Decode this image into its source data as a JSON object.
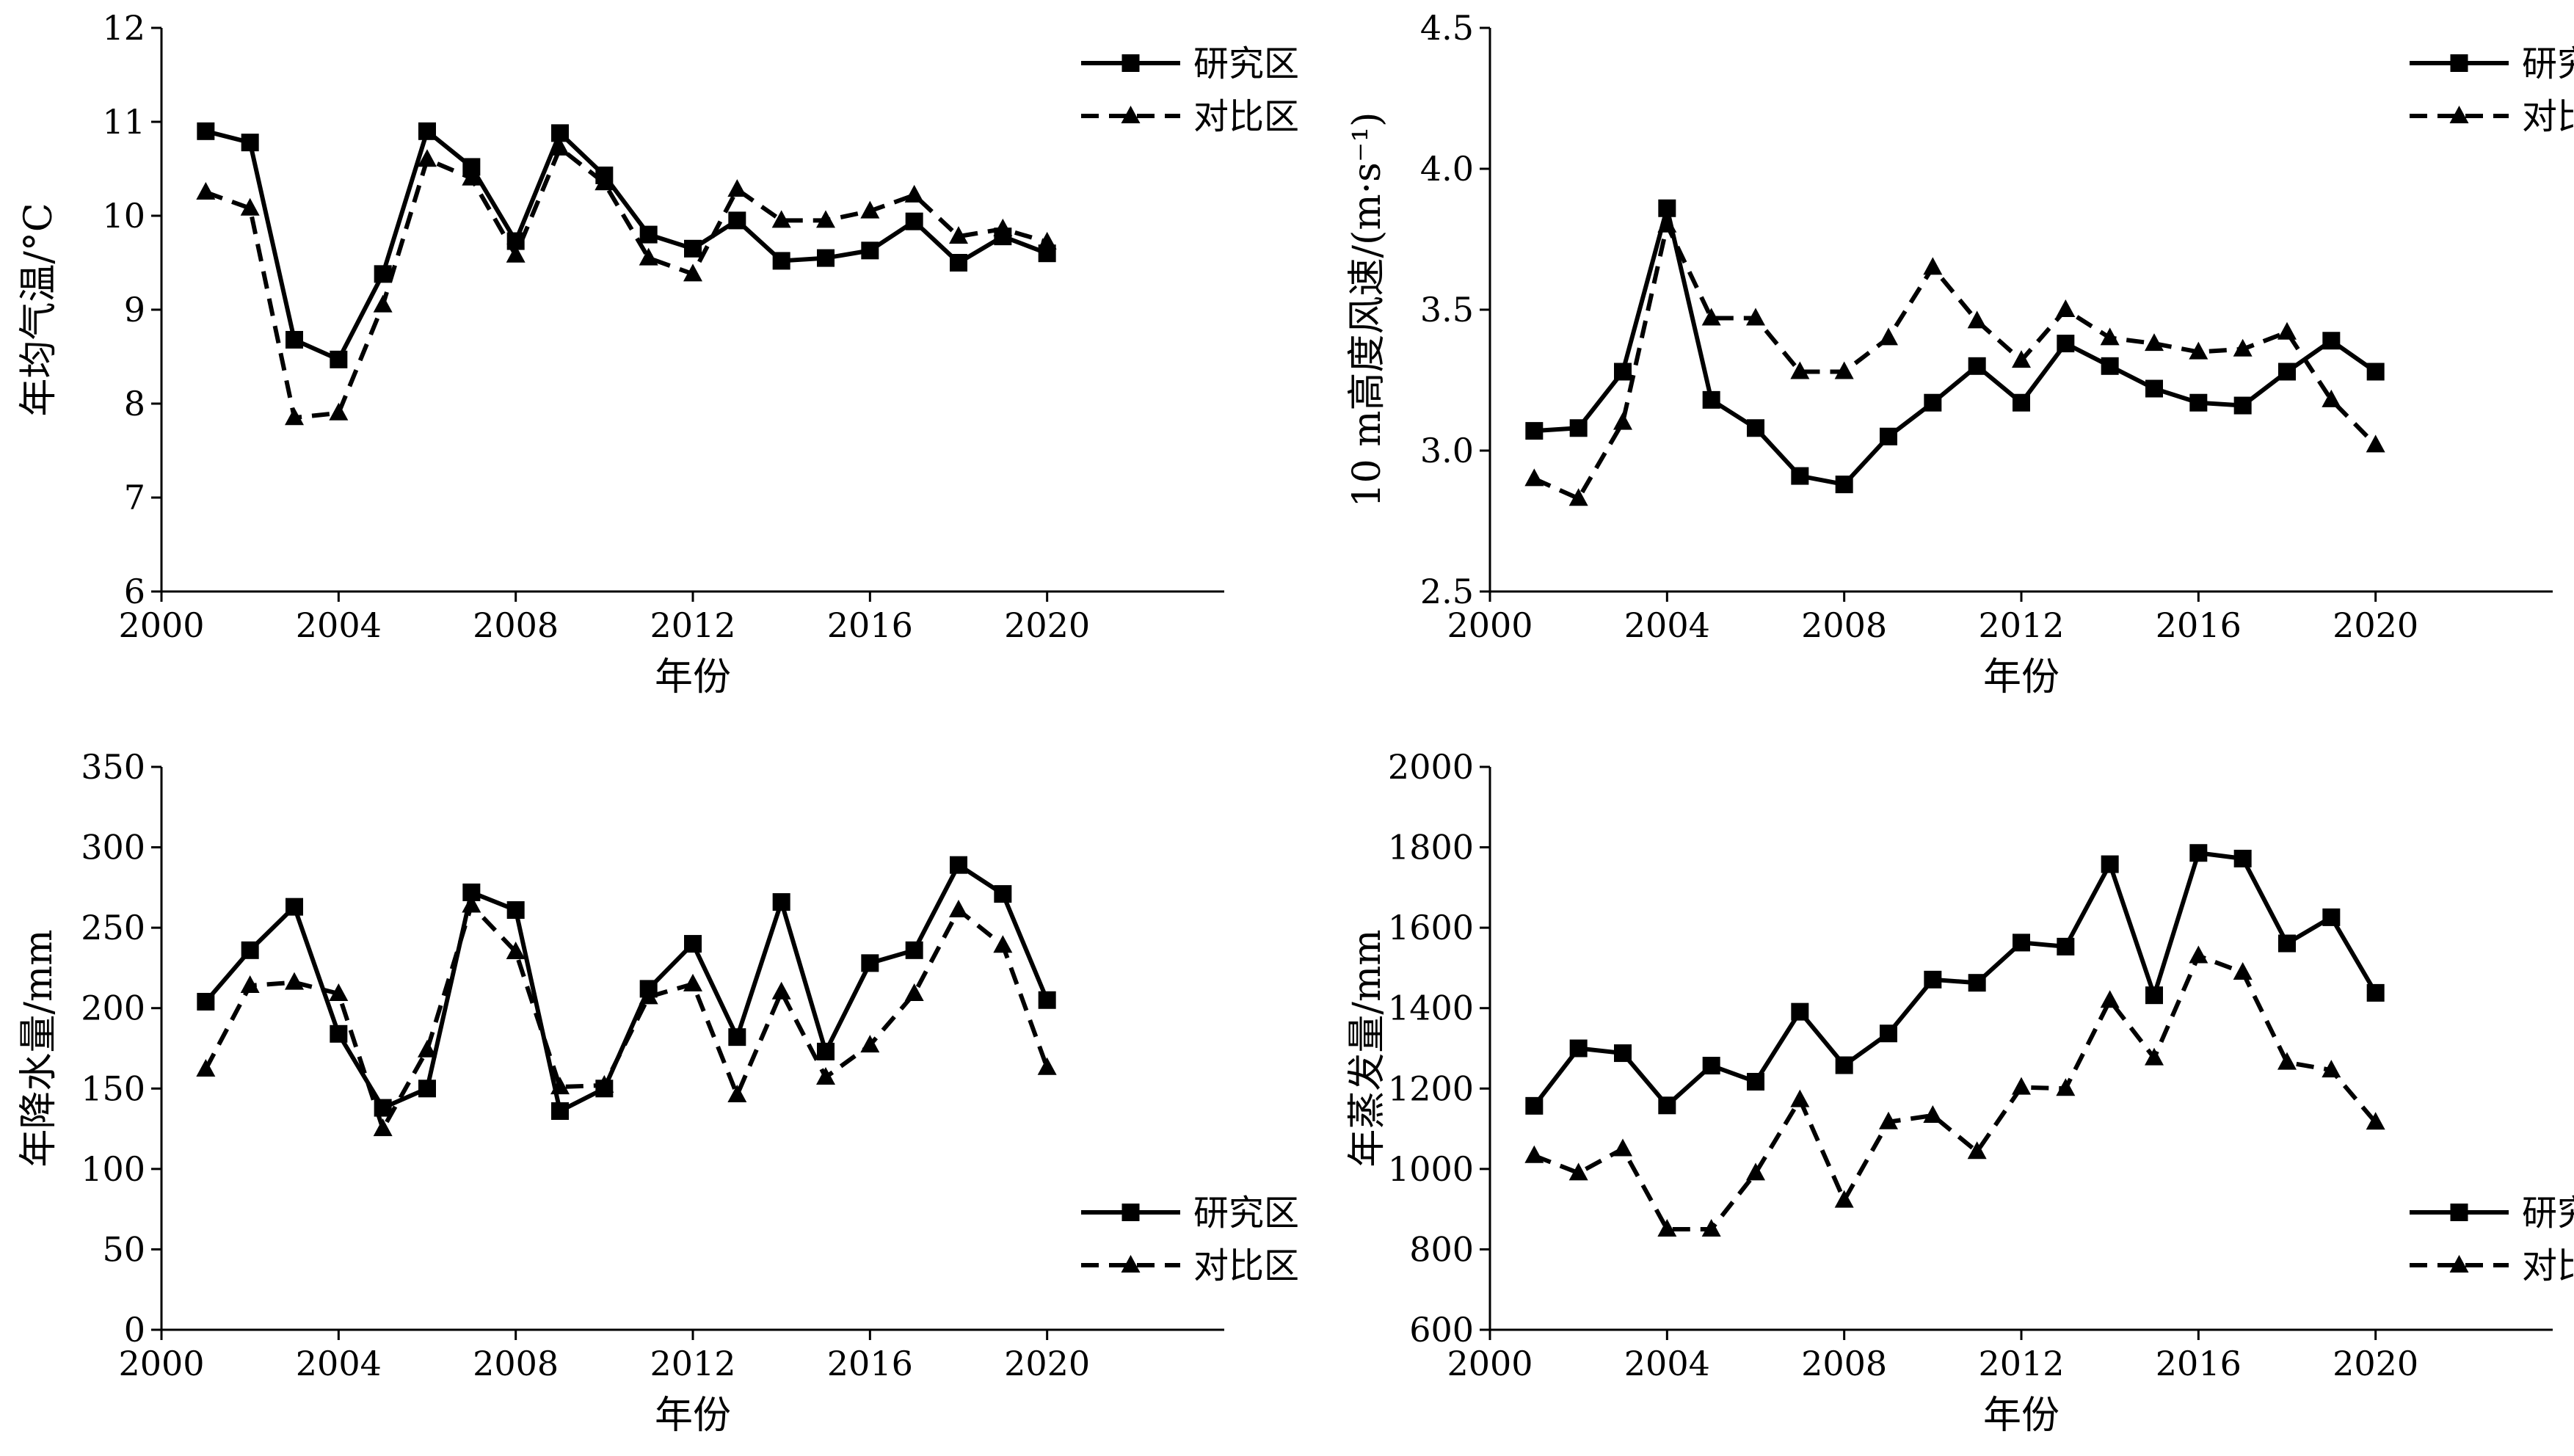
{
  "chart_data": [
    {
      "type": "line",
      "x": [
        2001,
        2002,
        2003,
        2004,
        2005,
        2006,
        2007,
        2008,
        2009,
        2010,
        2011,
        2012,
        2013,
        2014,
        2015,
        2016,
        2017,
        2018,
        2019,
        2020
      ],
      "series": [
        {
          "name": "研究区",
          "values": [
            10.9,
            10.78,
            8.68,
            8.47,
            9.38,
            10.9,
            10.52,
            9.73,
            10.88,
            10.43,
            9.8,
            9.65,
            9.95,
            9.52,
            9.55,
            9.63,
            9.94,
            9.5,
            9.78,
            9.6
          ]
        },
        {
          "name": "对比区",
          "values": [
            10.25,
            10.08,
            7.85,
            7.9,
            9.05,
            10.6,
            10.4,
            9.58,
            10.72,
            10.35,
            9.55,
            9.38,
            10.28,
            9.95,
            9.95,
            10.05,
            10.22,
            9.78,
            9.86,
            9.72
          ]
        }
      ],
      "xlabel": "年份",
      "ylabel": "年均气温/°C",
      "xlim": [
        2000,
        2024
      ],
      "ylim": [
        6,
        12
      ],
      "xticks": [
        2000,
        2004,
        2008,
        2012,
        2016,
        2020
      ],
      "yticks": [
        6,
        7,
        8,
        9,
        10,
        11,
        12
      ],
      "legend": "top-right"
    },
    {
      "type": "line",
      "x": [
        2001,
        2002,
        2003,
        2004,
        2005,
        2006,
        2007,
        2008,
        2009,
        2010,
        2011,
        2012,
        2013,
        2014,
        2015,
        2016,
        2017,
        2018,
        2019,
        2020
      ],
      "series": [
        {
          "name": "研究区",
          "values": [
            3.07,
            3.08,
            3.28,
            3.86,
            3.18,
            3.08,
            2.91,
            2.88,
            3.05,
            3.17,
            3.3,
            3.17,
            3.38,
            3.3,
            3.22,
            3.17,
            3.16,
            3.28,
            3.39,
            3.28
          ]
        },
        {
          "name": "对比区",
          "values": [
            2.9,
            2.83,
            3.1,
            3.8,
            3.47,
            3.47,
            3.28,
            3.28,
            3.4,
            3.65,
            3.46,
            3.32,
            3.5,
            3.4,
            3.38,
            3.35,
            3.36,
            3.42,
            3.18,
            3.02
          ]
        }
      ],
      "xlabel": "年份",
      "ylabel": "10 m高度风速/(m·s⁻¹)",
      "xlim": [
        2000,
        2024
      ],
      "ylim": [
        2.5,
        4.5
      ],
      "xticks": [
        2000,
        2004,
        2008,
        2012,
        2016,
        2020
      ],
      "yticks": [
        "2.5",
        "3.0",
        "3.5",
        "4.0",
        "4.5"
      ],
      "legend": "top-right"
    },
    {
      "type": "line",
      "x": [
        2001,
        2002,
        2003,
        2004,
        2005,
        2006,
        2007,
        2008,
        2009,
        2010,
        2011,
        2012,
        2013,
        2014,
        2015,
        2016,
        2017,
        2018,
        2019,
        2020
      ],
      "series": [
        {
          "name": "研究区",
          "values": [
            204,
            236,
            263,
            184,
            138,
            150,
            272,
            261,
            136,
            150,
            212,
            240,
            182,
            266,
            173,
            228,
            236,
            289,
            271,
            205
          ]
        },
        {
          "name": "对比区",
          "values": [
            162,
            214,
            216,
            209,
            125,
            174,
            264,
            235,
            151,
            152,
            207,
            215,
            146,
            210,
            157,
            177,
            209,
            261,
            239,
            163
          ]
        }
      ],
      "xlabel": "年份",
      "ylabel": "年降水量/mm",
      "xlim": [
        2000,
        2024
      ],
      "ylim": [
        0,
        350
      ],
      "xticks": [
        2000,
        2004,
        2008,
        2012,
        2016,
        2020
      ],
      "yticks": [
        0,
        50,
        100,
        150,
        200,
        250,
        300,
        350
      ],
      "legend": "bottom-right"
    },
    {
      "type": "line",
      "x": [
        2001,
        2002,
        2003,
        2004,
        2005,
        2006,
        2007,
        2008,
        2009,
        2010,
        2011,
        2012,
        2013,
        2014,
        2015,
        2016,
        2017,
        2018,
        2019,
        2020
      ],
      "series": [
        {
          "name": "研究区",
          "values": [
            1157,
            1300,
            1288,
            1158,
            1257,
            1217,
            1391,
            1258,
            1337,
            1471,
            1463,
            1563,
            1553,
            1758,
            1432,
            1786,
            1772,
            1561,
            1626,
            1438
          ]
        },
        {
          "name": "对比区",
          "values": [
            1033,
            990,
            1050,
            850,
            850,
            990,
            1172,
            922,
            1117,
            1133,
            1043,
            1203,
            1200,
            1419,
            1276,
            1530,
            1489,
            1265,
            1246,
            1116
          ]
        }
      ],
      "xlabel": "年份",
      "ylabel": "年蒸发量/mm",
      "xlim": [
        2000,
        2024
      ],
      "ylim": [
        600,
        2000
      ],
      "xticks": [
        2000,
        2004,
        2008,
        2012,
        2016,
        2020
      ],
      "yticks": [
        600,
        800,
        1000,
        1200,
        1400,
        1600,
        1800,
        2000
      ],
      "legend": "bottom-right"
    }
  ]
}
